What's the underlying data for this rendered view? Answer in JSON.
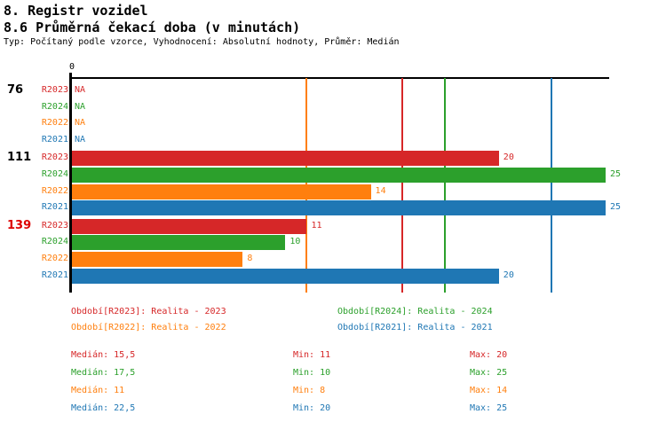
{
  "header": {
    "title": "8. Registr vozidel",
    "subtitle": "8.6 Průměrná čekací doba (v minutách)",
    "meta": "Typ: Počítaný podle vzorce, Vyhodnocení: Absolutní hodnoty, Průměr: Medián"
  },
  "colors": {
    "red": "#d62728",
    "green": "#2ca02c",
    "orange": "#ff7f0e",
    "blue": "#1f77b4",
    "group_highlight": "#dd0000",
    "text": "#000000"
  },
  "chart_data": {
    "type": "bar",
    "orientation": "horizontal",
    "title": "8.6 Průměrná čekací doba (v minutách)",
    "xlabel": "",
    "ylabel": "",
    "axis": {
      "zero_label": "0",
      "origin_value": 0,
      "max_value": 25.2,
      "grid": false
    },
    "groups": [
      {
        "label": "76",
        "label_color": "#000000",
        "bars": [
          {
            "series": "R2023",
            "value": null,
            "display": "NA",
            "color": "#d62728"
          },
          {
            "series": "R2024",
            "value": null,
            "display": "NA",
            "color": "#2ca02c"
          },
          {
            "series": "R2022",
            "value": null,
            "display": "NA",
            "color": "#ff7f0e"
          },
          {
            "series": "R2021",
            "value": null,
            "display": "NA",
            "color": "#1f77b4"
          }
        ]
      },
      {
        "label": "111",
        "label_color": "#000000",
        "bars": [
          {
            "series": "R2023",
            "value": 20,
            "display": "20",
            "color": "#d62728"
          },
          {
            "series": "R2024",
            "value": 25,
            "display": "25",
            "color": "#2ca02c"
          },
          {
            "series": "R2022",
            "value": 14,
            "display": "14",
            "color": "#ff7f0e"
          },
          {
            "series": "R2021",
            "value": 25,
            "display": "25",
            "color": "#1f77b4"
          }
        ]
      },
      {
        "label": "139",
        "label_color": "#dd0000",
        "bars": [
          {
            "series": "R2023",
            "value": 11,
            "display": "11",
            "color": "#d62728"
          },
          {
            "series": "R2024",
            "value": 10,
            "display": "10",
            "color": "#2ca02c"
          },
          {
            "series": "R2022",
            "value": 8,
            "display": "8",
            "color": "#ff7f0e"
          },
          {
            "series": "R2021",
            "value": 20,
            "display": "20",
            "color": "#1f77b4"
          }
        ]
      }
    ],
    "median_lines": [
      {
        "series": "R2022",
        "value": 11,
        "color": "#ff7f0e"
      },
      {
        "series": "R2023",
        "value": 15.5,
        "color": "#d62728"
      },
      {
        "series": "R2024",
        "value": 17.5,
        "color": "#2ca02c"
      },
      {
        "series": "R2021",
        "value": 22.5,
        "color": "#1f77b4"
      }
    ],
    "legend": [
      {
        "label": "Období[R2023]: Realita - 2023",
        "color": "#d62728"
      },
      {
        "label": "Období[R2024]: Realita - 2024",
        "color": "#2ca02c"
      },
      {
        "label": "Období[R2022]: Realita - 2022",
        "color": "#ff7f0e"
      },
      {
        "label": "Období[R2021]: Realita - 2021",
        "color": "#1f77b4"
      }
    ],
    "stats": [
      {
        "median": "Medián: 15,5",
        "min": "Min: 11",
        "max": "Max: 20",
        "color": "#d62728"
      },
      {
        "median": "Medián: 17,5",
        "min": "Min: 10",
        "max": "Max: 25",
        "color": "#2ca02c"
      },
      {
        "median": "Medián: 11",
        "min": "Min: 8",
        "max": "Max: 14",
        "color": "#ff7f0e"
      },
      {
        "median": "Medián: 22,5",
        "min": "Min: 20",
        "max": "Max: 25",
        "color": "#1f77b4"
      }
    ]
  }
}
